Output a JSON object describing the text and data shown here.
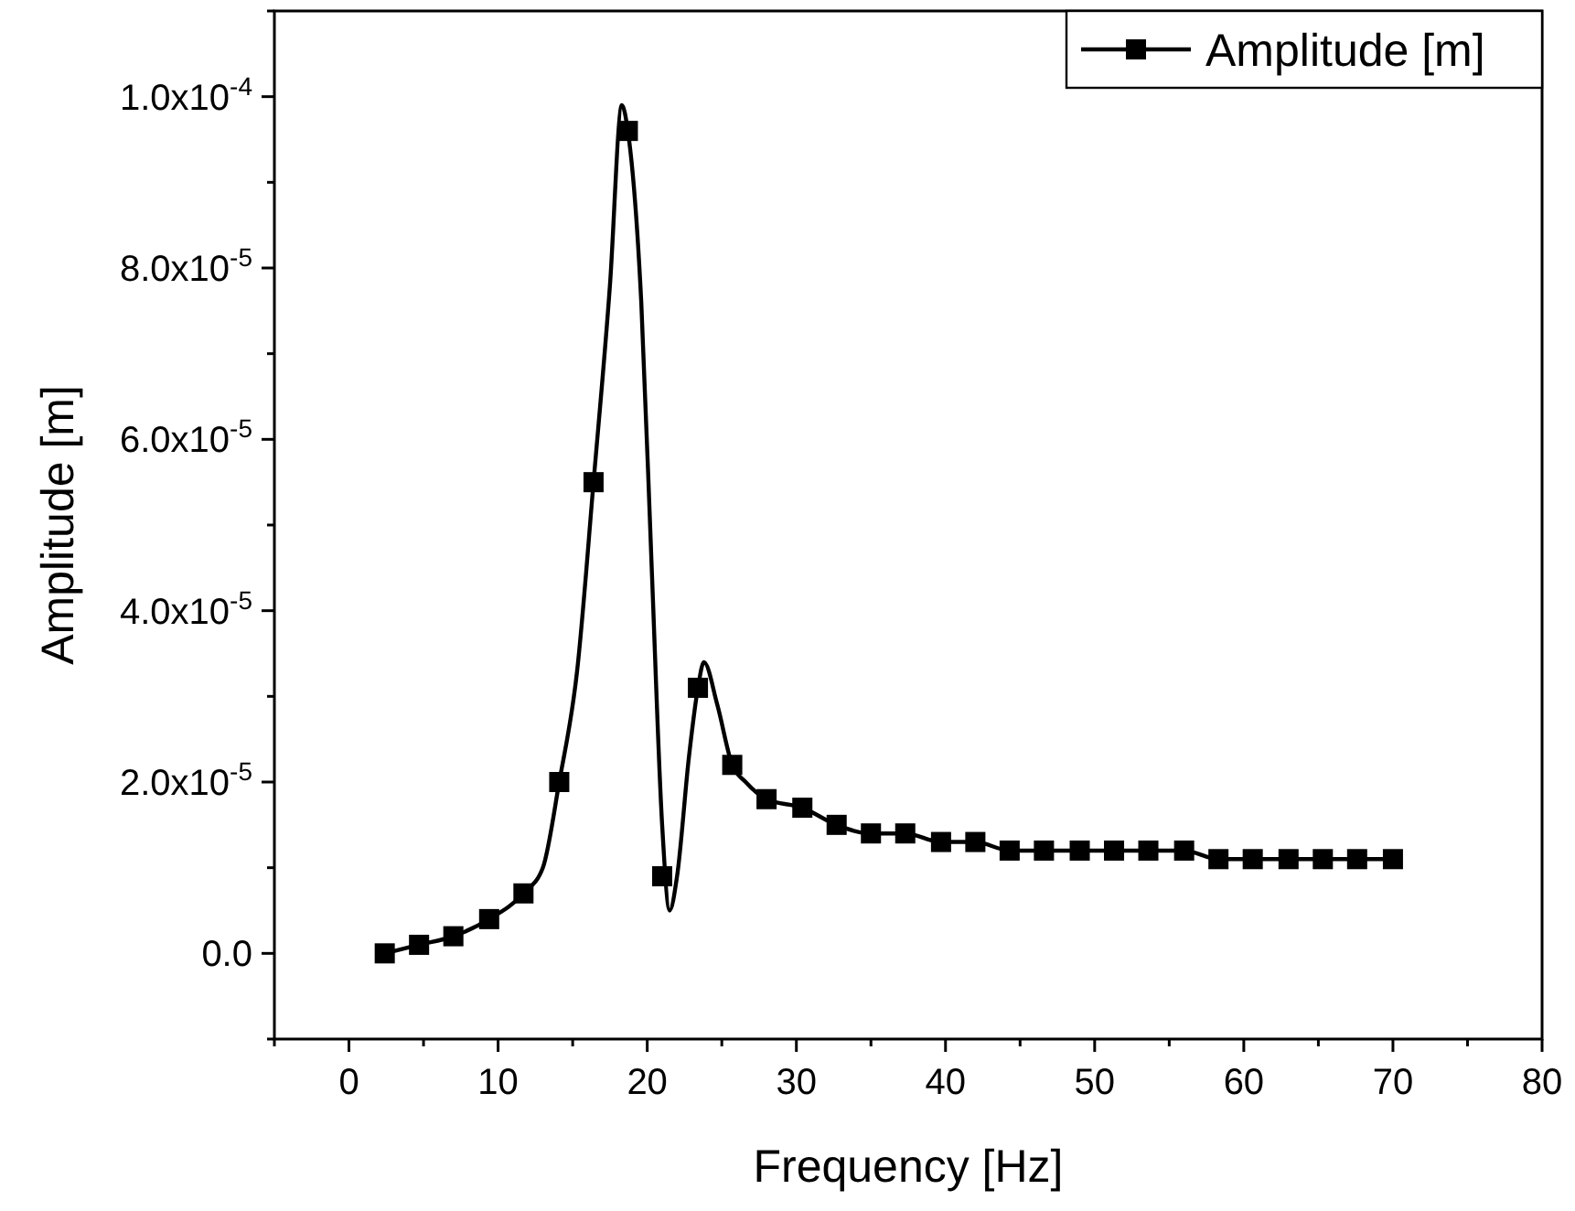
{
  "chart_data": {
    "type": "line",
    "xlabel": "Frequency [Hz]",
    "ylabel": "Amplitude [m]",
    "xlim": [
      -5,
      80
    ],
    "xticks": [
      {
        "value": -5,
        "label": null
      },
      0,
      {
        "value": 5,
        "label": null
      },
      10,
      {
        "value": 15,
        "label": null
      },
      20,
      {
        "value": 25,
        "label": null
      },
      30,
      {
        "value": 35,
        "label": null
      },
      40,
      {
        "value": 45,
        "label": null
      },
      50,
      {
        "value": 55,
        "label": null
      },
      60,
      {
        "value": 65,
        "label": null
      },
      70,
      {
        "value": 75,
        "label": null
      },
      80
    ],
    "ylim": [
      -1e-05,
      0.00011
    ],
    "yticks": [
      {
        "value": -1e-05,
        "label": null
      },
      {
        "value": 0,
        "label": "0.0"
      },
      {
        "value": 1e-05,
        "label": null
      },
      {
        "value": 2e-05,
        "label": "2.0x10$^{-5}$"
      },
      {
        "value": 3e-05,
        "label": null
      },
      {
        "value": 4e-05,
        "label": "4.0x10$^{-5}$"
      },
      {
        "value": 5e-05,
        "label": null
      },
      {
        "value": 6e-05,
        "label": "6.0x10$^{-5}$"
      },
      {
        "value": 7e-05,
        "label": null
      },
      {
        "value": 8e-05,
        "label": "8.0x10$^{-5}$"
      },
      {
        "value": 9e-05,
        "label": null
      },
      {
        "value": 0.0001,
        "label": "1.0x10$^{-4}$"
      },
      {
        "value": 0.00011,
        "label": null
      }
    ],
    "grid": false,
    "legend": "top right",
    "series": [
      {
        "type": "line",
        "color": "#000000",
        "marker": "none",
        "line_style": "solid",
        "x": [
          2.4,
          4.7,
          7.0,
          9.4,
          11.7,
          13.0,
          14.1,
          15.3,
          16.4,
          17.5,
          18.3,
          18.7,
          19.6,
          20.3,
          21.0,
          21.5,
          22.0,
          22.8,
          23.4,
          23.8,
          24.7,
          25.7,
          26.6,
          28.0,
          30.4,
          32.7,
          35.0,
          37.3,
          39.7,
          42.0,
          44.3,
          46.6,
          49.0,
          51.3,
          53.6,
          56.0,
          58.3,
          60.6,
          63.0,
          65.3,
          67.6,
          70.0
        ],
        "values": [
          0,
          1e-06,
          2e-06,
          4e-06,
          7e-06,
          1e-05,
          2e-05,
          3.3e-05,
          5.5e-05,
          7.8e-05,
          9.9e-05,
          9.6e-05,
          7.6e-05,
          4.5e-05,
          1.5e-05,
          5e-06,
          9e-06,
          2.3e-05,
          3.1e-05,
          3.4e-05,
          2.9e-05,
          2.2e-05,
          2e-05,
          1.8e-05,
          1.7e-05,
          1.5e-05,
          1.4e-05,
          1.4e-05,
          1.3e-05,
          1.3e-05,
          1.2e-05,
          1.2e-05,
          1.2e-05,
          1.2e-05,
          1.2e-05,
          1.2e-05,
          1.1e-05,
          1.1e-05,
          1.1e-05,
          1.1e-05,
          1.1e-05,
          1.1e-05
        ]
      },
      {
        "type": "scatter",
        "name": "Amplitude [m]",
        "color": "#000000",
        "marker": "square",
        "x": [
          2.4,
          4.7,
          7.0,
          9.4,
          11.7,
          14.1,
          16.4,
          18.7,
          21.0,
          23.4,
          25.7,
          28.0,
          30.4,
          32.7,
          35.0,
          37.3,
          39.7,
          42.0,
          44.3,
          46.6,
          49.0,
          51.3,
          53.6,
          56.0,
          58.3,
          60.6,
          63.0,
          65.3,
          67.6,
          70.0
        ],
        "values": [
          0,
          1e-06,
          2e-06,
          4e-06,
          7e-06,
          2e-05,
          5.5e-05,
          9.6e-05,
          9e-06,
          3.1e-05,
          2.2e-05,
          1.8e-05,
          1.7e-05,
          1.5e-05,
          1.4e-05,
          1.4e-05,
          1.3e-05,
          1.3e-05,
          1.2e-05,
          1.2e-05,
          1.2e-05,
          1.2e-05,
          1.2e-05,
          1.2e-05,
          1.1e-05,
          1.1e-05,
          1.1e-05,
          1.1e-05,
          1.1e-05,
          1.1e-05
        ]
      }
    ]
  }
}
